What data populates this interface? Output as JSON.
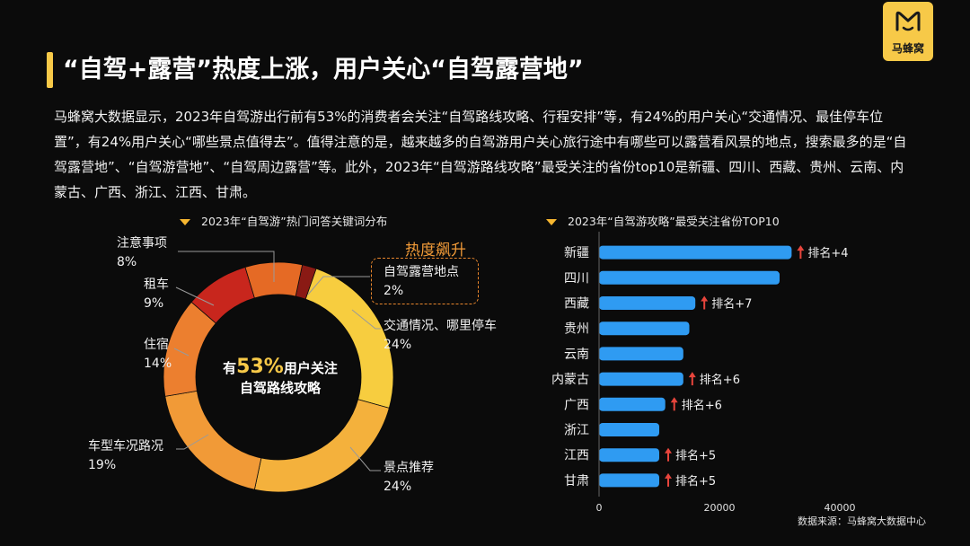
{
  "title": "“自驾+露营”热度上涨，用户关心“自驾露营地”",
  "logo": {
    "text": "马蜂窝"
  },
  "description": "马蜂窝大数据显示，2023年自驾游出行前有53%的消费者会关注“自驾路线攻略、行程安排”等，有24%的用户关心“交通情况、最佳停车位置”，有24%用户关心“哪些景点值得去”。值得注意的是，越来越多的自驾游用户关心旅行途中有哪些可以露营看风景的地点，搜索最多的是“自驾露营地”、“自驾游营地”、“自驾周边露营”等。此外，2023年“自驾游路线攻略”最受关注的省份top10是新疆、四川、西藏、贵州、云南、内蒙古、广西、浙江、江西、甘肃。",
  "source": "数据来源：马蜂窝大数据中心",
  "chart_data": [
    {
      "type": "pie",
      "title": "2023年“自驾游”热门问答关键词分布",
      "center_text": {
        "prefix": "有",
        "value": "53%",
        "suffix": "用户关注",
        "line2": "自驾路线攻略"
      },
      "highlight_label": "热度飙升",
      "slices": [
        {
          "name": "自驾露营地点",
          "value": 2,
          "label": "2%",
          "color": "#8a1a14"
        },
        {
          "name": "交通情况、哪里停车",
          "value": 24,
          "label": "24%",
          "color": "#f7cd3f"
        },
        {
          "name": "景点推荐",
          "value": 24,
          "label": "24%",
          "color": "#f4b13c"
        },
        {
          "name": "车型车况路况",
          "value": 19,
          "label": "19%",
          "color": "#f19a37"
        },
        {
          "name": "住宿",
          "value": 14,
          "label": "14%",
          "color": "#ec7f2f"
        },
        {
          "name": "租车",
          "value": 9,
          "label": "9%",
          "color": "#c8261d"
        },
        {
          "name": "注意事项",
          "value": 8,
          "label": "8%",
          "color": "#e56a25"
        }
      ]
    },
    {
      "type": "bar",
      "orientation": "horizontal",
      "title": "2023年“自驾游攻略”最受关注省份TOP10",
      "categories": [
        "新疆",
        "四川",
        "西藏",
        "贵州",
        "云南",
        "内蒙古",
        "广西",
        "浙江",
        "江西",
        "甘肃"
      ],
      "values": [
        32000,
        30000,
        16000,
        15000,
        14000,
        14000,
        11000,
        10000,
        10000,
        10000
      ],
      "annotations": [
        "排名+4",
        "",
        "排名+7",
        "",
        "",
        "排名+6",
        "排名+6",
        "",
        "排名+5",
        "排名+5"
      ],
      "xlim": [
        0,
        40000
      ],
      "xticks": [
        "0",
        "20000",
        "40000"
      ],
      "bar_color": "#2f9bf2",
      "arrow_color": "#e8453c"
    }
  ]
}
